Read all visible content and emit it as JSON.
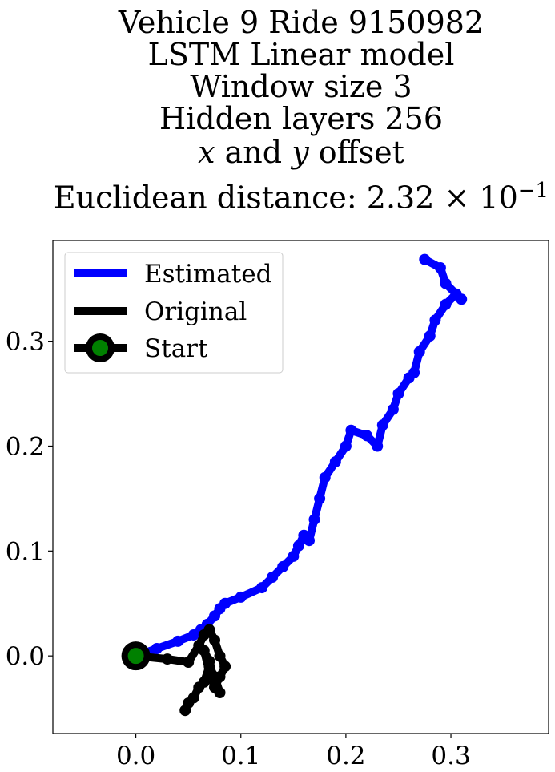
{
  "chart_data": {
    "type": "line",
    "title_lines": [
      "Vehicle 9 Ride 9150982",
      "LSTM Linear model",
      "Window size 3",
      "Hidden layers 256"
    ],
    "title_offset": {
      "x_var": "x",
      "and": " and ",
      "y_var": "y",
      "rest": " offset"
    },
    "title_distance": {
      "text": "Euclidean distance: 2.32",
      "times": " × 10",
      "exp": "−1"
    },
    "xlim": [
      -0.079,
      0.393
    ],
    "ylim": [
      -0.074,
      0.396
    ],
    "xticks": [
      0.0,
      0.1,
      0.2,
      0.3
    ],
    "yticks": [
      0.0,
      0.1,
      0.2,
      0.3
    ],
    "xtick_labels": [
      "0.0",
      "0.1",
      "0.2",
      "0.3"
    ],
    "ytick_labels": [
      "0.0",
      "0.1",
      "0.2",
      "0.3"
    ],
    "legend_placement": "top-left",
    "grid": false,
    "series": [
      {
        "name": "Estimated",
        "color": "#0000ff",
        "x": [
          0.0,
          0.02,
          0.04,
          0.055,
          0.062,
          0.068,
          0.075,
          0.08,
          0.085,
          0.1,
          0.12,
          0.13,
          0.14,
          0.15,
          0.155,
          0.16,
          0.165,
          0.17,
          0.175,
          0.18,
          0.19,
          0.2,
          0.205,
          0.22,
          0.23,
          0.235,
          0.245,
          0.25,
          0.26,
          0.265,
          0.27,
          0.28,
          0.285,
          0.295,
          0.305,
          0.31,
          0.295,
          0.29,
          0.275
        ],
        "y": [
          0.0,
          0.007,
          0.014,
          0.02,
          0.025,
          0.03,
          0.038,
          0.045,
          0.05,
          0.056,
          0.065,
          0.075,
          0.085,
          0.095,
          0.105,
          0.115,
          0.11,
          0.13,
          0.15,
          0.17,
          0.185,
          0.2,
          0.215,
          0.21,
          0.2,
          0.22,
          0.235,
          0.25,
          0.265,
          0.27,
          0.29,
          0.305,
          0.32,
          0.335,
          0.345,
          0.34,
          0.355,
          0.37,
          0.378
        ]
      },
      {
        "name": "Original",
        "color": "#000000",
        "x": [
          0.0,
          0.03,
          0.05,
          0.06,
          0.065,
          0.07,
          0.075,
          0.08,
          0.085,
          0.08,
          0.075,
          0.07,
          0.065,
          0.07,
          0.075,
          0.08,
          0.075,
          0.07,
          0.065,
          0.06,
          0.055,
          0.05,
          0.047
        ],
        "y": [
          0.0,
          -0.003,
          -0.006,
          0.01,
          0.02,
          0.025,
          0.015,
          0.0,
          -0.01,
          -0.02,
          -0.03,
          -0.005,
          0.005,
          -0.015,
          -0.025,
          -0.035,
          -0.02,
          -0.01,
          -0.025,
          -0.03,
          -0.04,
          -0.045,
          -0.052
        ]
      }
    ],
    "start": {
      "name": "Start",
      "x": 0.0,
      "y": 0.0,
      "edge_color": "#000000",
      "face_color": "#008000"
    }
  }
}
